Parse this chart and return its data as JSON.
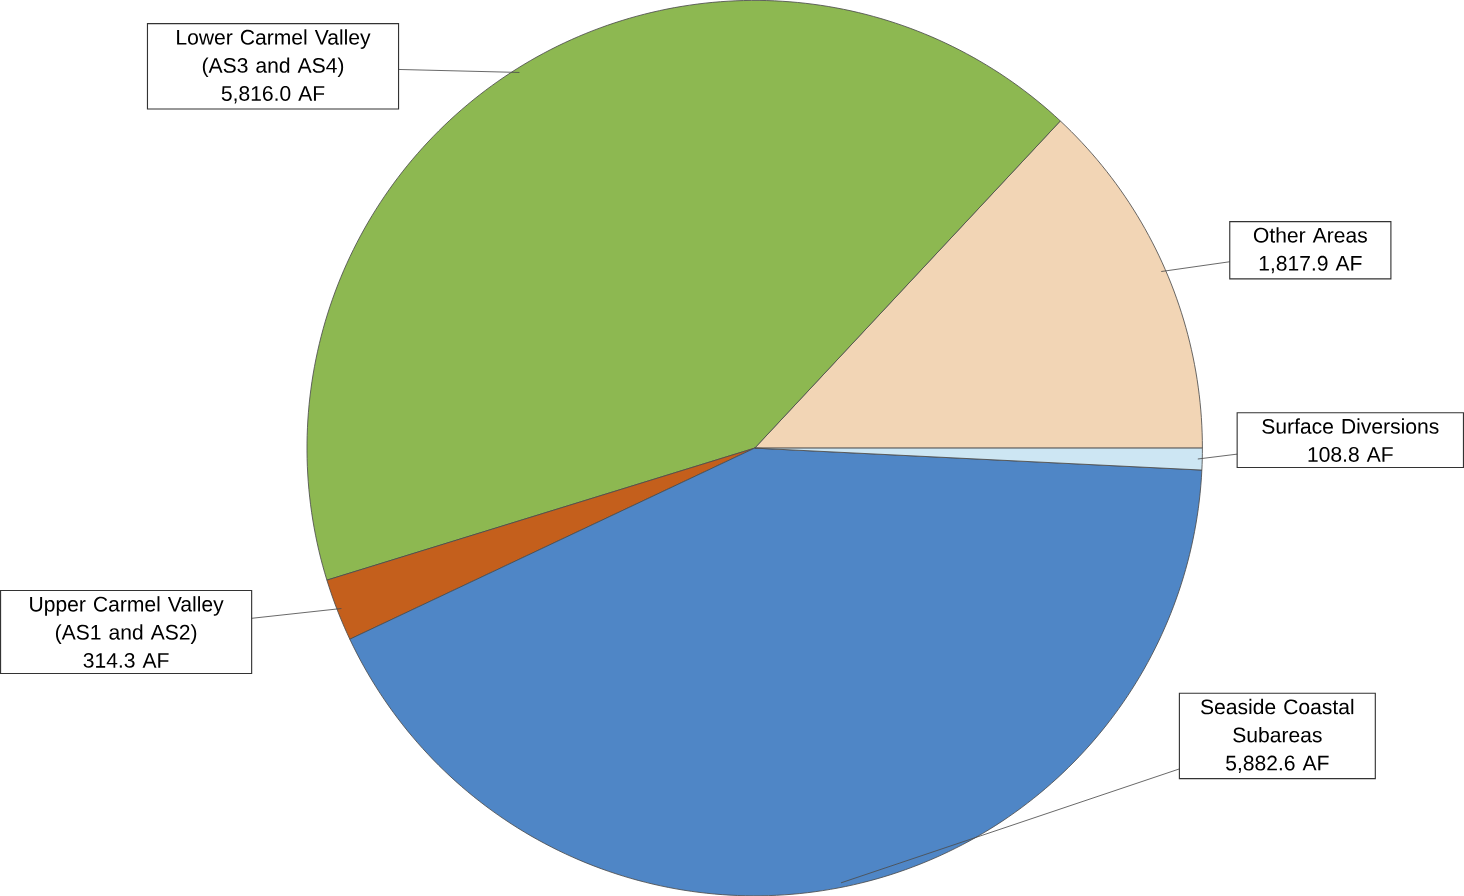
{
  "chart_data": {
    "type": "pie",
    "categories": [
      "Other Areas",
      "Lower Carmel Valley (AS3 and AS4)",
      "Upper Carmel Valley (AS1 and AS2)",
      "Seaside Coastal Subareas",
      "Surface Diversions"
    ],
    "values": [
      1817.9,
      5816.0,
      314.3,
      5882.6,
      108.8
    ],
    "colors": [
      "#f2d5b5",
      "#8db851",
      "#c45f1c",
      "#4f86c6",
      "#cde6f3"
    ],
    "value_labels": [
      "1,817.9 AF",
      "5,816.0 AF",
      "314.3 AF",
      "5,882.6 AF",
      "108.8 AF"
    ]
  }
}
